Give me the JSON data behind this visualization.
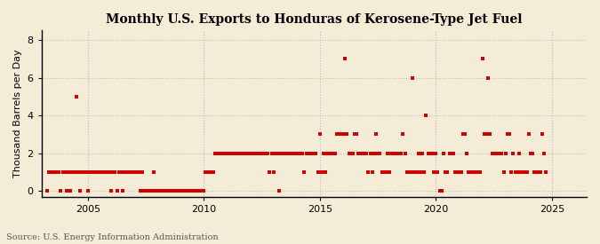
{
  "title": "Monthly U.S. Exports to Honduras of Kerosene-Type Jet Fuel",
  "ylabel": "Thousand Barrels per Day",
  "source": "Source: U.S. Energy Information Administration",
  "background_color": "#f5ecd7",
  "plot_bg_color": "#f5ecd7",
  "dot_color": "#cc0000",
  "grid_color": "#bbbbbb",
  "spine_color": "#000000",
  "xlim": [
    2003.0,
    2026.5
  ],
  "ylim": [
    -0.3,
    8.5
  ],
  "yticks": [
    0,
    2,
    4,
    6,
    8
  ],
  "xticks": [
    2005,
    2010,
    2015,
    2020,
    2025
  ],
  "figsize": [
    6.75,
    2.75
  ],
  "dpi": 100,
  "data_points": [
    [
      2003.25,
      0
    ],
    [
      2003.33,
      1
    ],
    [
      2003.42,
      1
    ],
    [
      2003.5,
      1
    ],
    [
      2003.58,
      1
    ],
    [
      2003.67,
      1
    ],
    [
      2003.75,
      1
    ],
    [
      2003.83,
      0
    ],
    [
      2003.92,
      1
    ],
    [
      2004.0,
      1
    ],
    [
      2004.08,
      0
    ],
    [
      2004.17,
      1
    ],
    [
      2004.25,
      0
    ],
    [
      2004.33,
      1
    ],
    [
      2004.42,
      1
    ],
    [
      2004.5,
      5
    ],
    [
      2004.58,
      1
    ],
    [
      2004.67,
      0
    ],
    [
      2004.75,
      1
    ],
    [
      2004.83,
      1
    ],
    [
      2004.92,
      1
    ],
    [
      2005.0,
      0
    ],
    [
      2005.08,
      1
    ],
    [
      2005.17,
      1
    ],
    [
      2005.25,
      1
    ],
    [
      2005.33,
      1
    ],
    [
      2005.42,
      1
    ],
    [
      2005.5,
      1
    ],
    [
      2005.58,
      1
    ],
    [
      2005.67,
      1
    ],
    [
      2005.75,
      1
    ],
    [
      2005.83,
      1
    ],
    [
      2005.92,
      1
    ],
    [
      2006.0,
      0
    ],
    [
      2006.08,
      1
    ],
    [
      2006.17,
      1
    ],
    [
      2006.25,
      0
    ],
    [
      2006.33,
      1
    ],
    [
      2006.42,
      1
    ],
    [
      2006.5,
      0
    ],
    [
      2006.58,
      1
    ],
    [
      2006.67,
      1
    ],
    [
      2006.75,
      1
    ],
    [
      2006.83,
      1
    ],
    [
      2006.92,
      1
    ],
    [
      2007.0,
      1
    ],
    [
      2007.08,
      1
    ],
    [
      2007.17,
      1
    ],
    [
      2007.25,
      0
    ],
    [
      2007.33,
      1
    ],
    [
      2007.42,
      0
    ],
    [
      2007.5,
      0
    ],
    [
      2007.58,
      0
    ],
    [
      2007.67,
      0
    ],
    [
      2007.75,
      0
    ],
    [
      2007.83,
      1
    ],
    [
      2007.92,
      0
    ],
    [
      2008.0,
      0
    ],
    [
      2008.08,
      0
    ],
    [
      2008.17,
      0
    ],
    [
      2008.25,
      0
    ],
    [
      2008.33,
      0
    ],
    [
      2008.42,
      0
    ],
    [
      2008.5,
      0
    ],
    [
      2008.58,
      0
    ],
    [
      2008.67,
      0
    ],
    [
      2008.75,
      0
    ],
    [
      2008.83,
      0
    ],
    [
      2008.92,
      0
    ],
    [
      2009.0,
      0
    ],
    [
      2009.08,
      0
    ],
    [
      2009.17,
      0
    ],
    [
      2009.25,
      0
    ],
    [
      2009.33,
      0
    ],
    [
      2009.42,
      0
    ],
    [
      2009.5,
      0
    ],
    [
      2009.58,
      0
    ],
    [
      2009.67,
      0
    ],
    [
      2009.75,
      0
    ],
    [
      2009.83,
      0
    ],
    [
      2009.92,
      0
    ],
    [
      2010.0,
      0
    ],
    [
      2010.08,
      1
    ],
    [
      2010.17,
      1
    ],
    [
      2010.25,
      1
    ],
    [
      2010.33,
      1
    ],
    [
      2010.42,
      1
    ],
    [
      2010.5,
      2
    ],
    [
      2010.58,
      2
    ],
    [
      2010.67,
      2
    ],
    [
      2010.75,
      2
    ],
    [
      2010.83,
      2
    ],
    [
      2010.92,
      2
    ],
    [
      2011.0,
      2
    ],
    [
      2011.08,
      2
    ],
    [
      2011.17,
      2
    ],
    [
      2011.25,
      2
    ],
    [
      2011.33,
      2
    ],
    [
      2011.42,
      2
    ],
    [
      2011.5,
      2
    ],
    [
      2011.58,
      2
    ],
    [
      2011.67,
      2
    ],
    [
      2011.75,
      2
    ],
    [
      2011.83,
      2
    ],
    [
      2011.92,
      2
    ],
    [
      2012.0,
      2
    ],
    [
      2012.08,
      2
    ],
    [
      2012.17,
      2
    ],
    [
      2012.25,
      2
    ],
    [
      2012.33,
      2
    ],
    [
      2012.42,
      2
    ],
    [
      2012.5,
      2
    ],
    [
      2012.58,
      2
    ],
    [
      2012.67,
      2
    ],
    [
      2012.75,
      2
    ],
    [
      2012.83,
      1
    ],
    [
      2012.92,
      2
    ],
    [
      2013.0,
      1
    ],
    [
      2013.08,
      2
    ],
    [
      2013.17,
      2
    ],
    [
      2013.25,
      0
    ],
    [
      2013.33,
      2
    ],
    [
      2013.42,
      2
    ],
    [
      2013.5,
      2
    ],
    [
      2013.58,
      2
    ],
    [
      2013.67,
      2
    ],
    [
      2013.75,
      2
    ],
    [
      2013.83,
      2
    ],
    [
      2013.92,
      2
    ],
    [
      2014.0,
      2
    ],
    [
      2014.08,
      2
    ],
    [
      2014.17,
      2
    ],
    [
      2014.25,
      2
    ],
    [
      2014.33,
      1
    ],
    [
      2014.42,
      2
    ],
    [
      2014.5,
      2
    ],
    [
      2014.58,
      2
    ],
    [
      2014.67,
      2
    ],
    [
      2014.75,
      2
    ],
    [
      2014.83,
      2
    ],
    [
      2014.92,
      1
    ],
    [
      2015.0,
      3
    ],
    [
      2015.08,
      1
    ],
    [
      2015.17,
      2
    ],
    [
      2015.25,
      1
    ],
    [
      2015.33,
      2
    ],
    [
      2015.42,
      2
    ],
    [
      2015.5,
      2
    ],
    [
      2015.58,
      2
    ],
    [
      2015.67,
      2
    ],
    [
      2015.75,
      3
    ],
    [
      2015.83,
      3
    ],
    [
      2015.92,
      3
    ],
    [
      2016.0,
      3
    ],
    [
      2016.08,
      7
    ],
    [
      2016.17,
      3
    ],
    [
      2016.25,
      2
    ],
    [
      2016.33,
      2
    ],
    [
      2016.42,
      2
    ],
    [
      2016.5,
      3
    ],
    [
      2016.58,
      3
    ],
    [
      2016.67,
      2
    ],
    [
      2016.75,
      2
    ],
    [
      2016.83,
      2
    ],
    [
      2016.92,
      2
    ],
    [
      2017.0,
      2
    ],
    [
      2017.08,
      1
    ],
    [
      2017.17,
      2
    ],
    [
      2017.25,
      1
    ],
    [
      2017.33,
      2
    ],
    [
      2017.42,
      3
    ],
    [
      2017.5,
      2
    ],
    [
      2017.58,
      2
    ],
    [
      2017.67,
      1
    ],
    [
      2017.75,
      1
    ],
    [
      2017.83,
      1
    ],
    [
      2017.92,
      2
    ],
    [
      2018.0,
      1
    ],
    [
      2018.08,
      2
    ],
    [
      2018.17,
      2
    ],
    [
      2018.25,
      2
    ],
    [
      2018.33,
      2
    ],
    [
      2018.42,
      2
    ],
    [
      2018.5,
      2
    ],
    [
      2018.58,
      3
    ],
    [
      2018.67,
      2
    ],
    [
      2018.75,
      1
    ],
    [
      2018.83,
      1
    ],
    [
      2018.92,
      1
    ],
    [
      2019.0,
      6
    ],
    [
      2019.08,
      1
    ],
    [
      2019.17,
      1
    ],
    [
      2019.25,
      2
    ],
    [
      2019.33,
      1
    ],
    [
      2019.42,
      2
    ],
    [
      2019.5,
      1
    ],
    [
      2019.58,
      4
    ],
    [
      2019.67,
      2
    ],
    [
      2019.75,
      2
    ],
    [
      2019.83,
      2
    ],
    [
      2019.92,
      1
    ],
    [
      2020.0,
      2
    ],
    [
      2020.08,
      1
    ],
    [
      2020.17,
      0
    ],
    [
      2020.25,
      0
    ],
    [
      2020.33,
      2
    ],
    [
      2020.42,
      1
    ],
    [
      2020.5,
      1
    ],
    [
      2020.58,
      2
    ],
    [
      2020.67,
      2
    ],
    [
      2020.75,
      2
    ],
    [
      2020.83,
      1
    ],
    [
      2020.92,
      1
    ],
    [
      2021.0,
      1
    ],
    [
      2021.08,
      1
    ],
    [
      2021.17,
      3
    ],
    [
      2021.25,
      3
    ],
    [
      2021.33,
      2
    ],
    [
      2021.42,
      1
    ],
    [
      2021.5,
      1
    ],
    [
      2021.58,
      1
    ],
    [
      2021.67,
      1
    ],
    [
      2021.75,
      1
    ],
    [
      2021.83,
      1
    ],
    [
      2021.92,
      1
    ],
    [
      2022.0,
      7
    ],
    [
      2022.08,
      3
    ],
    [
      2022.17,
      3
    ],
    [
      2022.25,
      6
    ],
    [
      2022.33,
      3
    ],
    [
      2022.42,
      2
    ],
    [
      2022.5,
      2
    ],
    [
      2022.58,
      2
    ],
    [
      2022.67,
      2
    ],
    [
      2022.75,
      2
    ],
    [
      2022.83,
      2
    ],
    [
      2022.92,
      1
    ],
    [
      2023.0,
      2
    ],
    [
      2023.08,
      3
    ],
    [
      2023.17,
      3
    ],
    [
      2023.25,
      1
    ],
    [
      2023.33,
      2
    ],
    [
      2023.42,
      1
    ],
    [
      2023.5,
      1
    ],
    [
      2023.58,
      2
    ],
    [
      2023.67,
      1
    ],
    [
      2023.75,
      1
    ],
    [
      2023.83,
      1
    ],
    [
      2023.92,
      1
    ],
    [
      2024.0,
      3
    ],
    [
      2024.08,
      2
    ],
    [
      2024.17,
      2
    ],
    [
      2024.25,
      1
    ],
    [
      2024.33,
      1
    ],
    [
      2024.42,
      1
    ],
    [
      2024.5,
      1
    ],
    [
      2024.58,
      3
    ],
    [
      2024.67,
      2
    ],
    [
      2024.75,
      1
    ]
  ]
}
